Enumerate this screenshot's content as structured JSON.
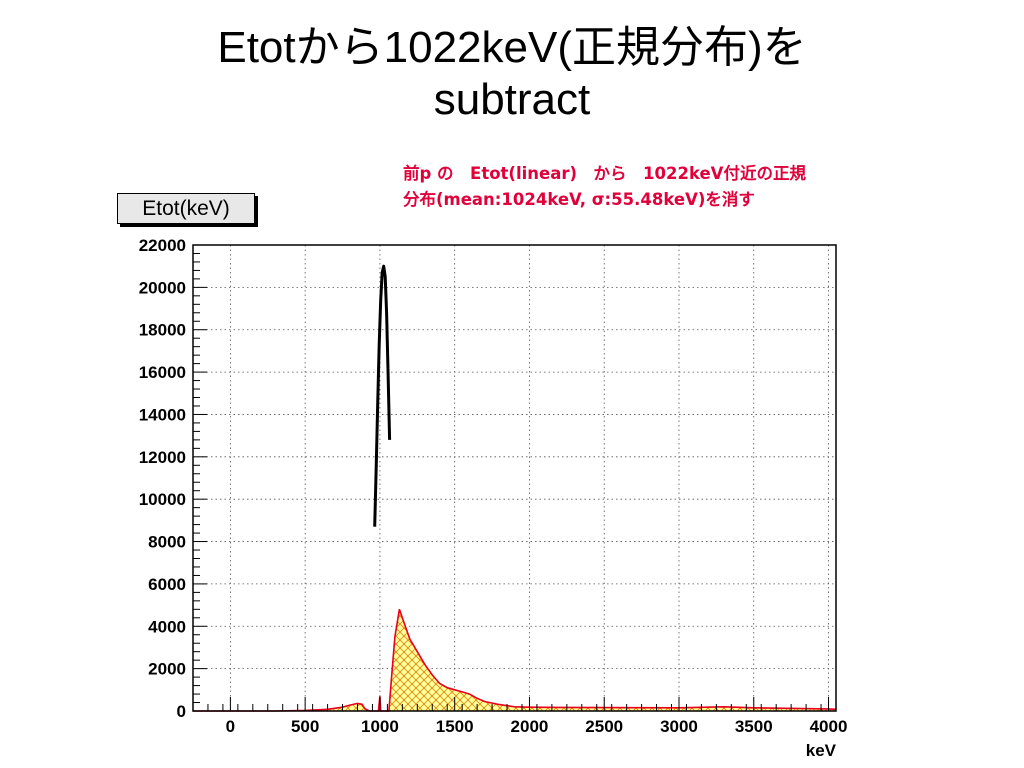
{
  "slide": {
    "title_line1": "Etotから1022keV(正規分布)を",
    "title_line2": "subtract"
  },
  "annotation": {
    "line1": "前p の　Etot(linear)　から　1022keV付近の正規",
    "line2": "分布(mean:1024keV, σ:55.48keV)を消す"
  },
  "chart_data": {
    "type": "line",
    "stats_box_label": "Etot(keV)",
    "xlabel": "keV",
    "ylabel": "",
    "xlim": [
      -250,
      4050
    ],
    "ylim": [
      0,
      22000
    ],
    "x_ticks": [
      0,
      500,
      1000,
      1500,
      2000,
      2500,
      3000,
      3500,
      4000
    ],
    "y_ticks": [
      0,
      2000,
      4000,
      6000,
      8000,
      10000,
      12000,
      14000,
      16000,
      18000,
      20000,
      22000
    ],
    "grid": true,
    "colors": {
      "histogram_line": "#e8001c",
      "histogram_fill": "#ffff99",
      "fill_hatch": "#e07000",
      "removed_curve": "#000000",
      "frame": "#000000",
      "grid": "#555555"
    },
    "series": [
      {
        "role": "histogram",
        "x": [
          -250,
          300,
          500,
          650,
          750,
          800,
          850,
          880,
          900,
          930,
          960,
          990,
          1000,
          1005,
          1010,
          1020,
          1040,
          1060,
          1080,
          1100,
          1130,
          1160,
          1180,
          1200,
          1250,
          1300,
          1350,
          1400,
          1450,
          1500,
          1550,
          1600,
          1650,
          1700,
          1800,
          1900,
          2000,
          2200,
          2500,
          3000,
          3300,
          3500,
          4000,
          4050
        ],
        "y": [
          0,
          0,
          30,
          80,
          180,
          280,
          360,
          320,
          100,
          0,
          0,
          0,
          700,
          0,
          0,
          0,
          0,
          0,
          1800,
          3500,
          4800,
          4200,
          3800,
          3400,
          2800,
          2200,
          1700,
          1300,
          1100,
          1000,
          900,
          800,
          600,
          450,
          300,
          200,
          180,
          170,
          160,
          150,
          200,
          150,
          100,
          80
        ]
      },
      {
        "role": "subtracted-gaussian",
        "x": [
          965,
          975,
          985,
          995,
          1005,
          1015,
          1025,
          1035,
          1045,
          1055,
          1065
        ],
        "y": [
          8700,
          11500,
          14500,
          17300,
          19400,
          20700,
          21000,
          20500,
          18800,
          15900,
          12800
        ]
      }
    ]
  }
}
